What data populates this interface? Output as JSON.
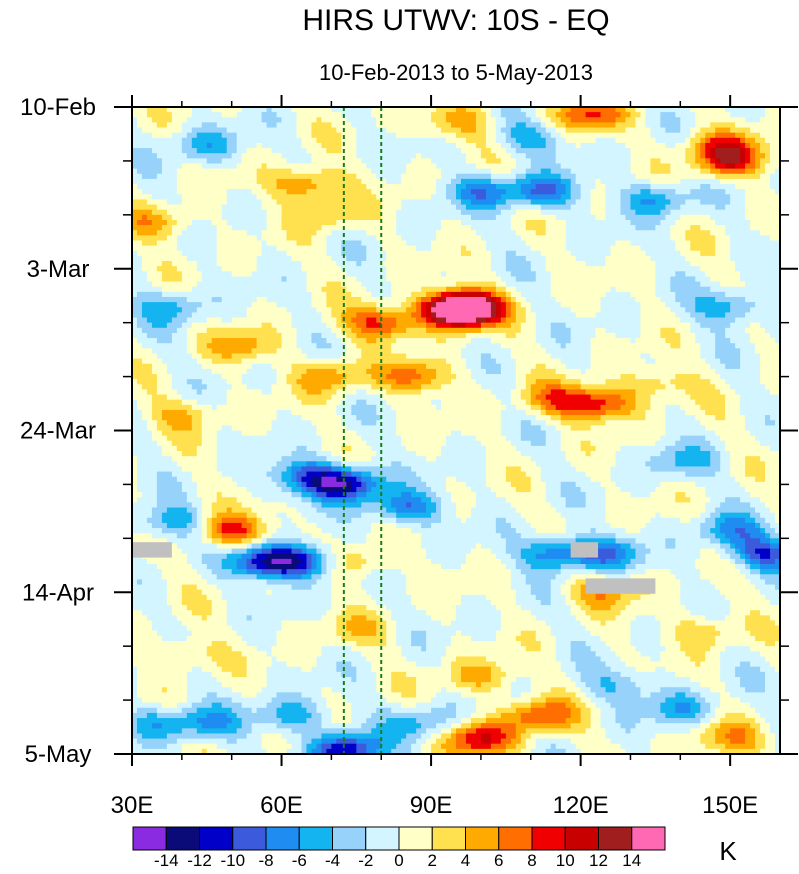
{
  "chart_data": {
    "type": "heatmap",
    "title": "HIRS UTWV: 10S - EQ",
    "subtitle": "10-Feb-2013 to 5-May-2013",
    "xlabel": "",
    "ylabel": "",
    "xlim": [
      30,
      160
    ],
    "ylim_days": [
      0,
      84
    ],
    "x_ticks": [
      {
        "value": 30,
        "label": "30E"
      },
      {
        "value": 60,
        "label": "60E"
      },
      {
        "value": 90,
        "label": "90E"
      },
      {
        "value": 120,
        "label": "120E"
      },
      {
        "value": 150,
        "label": "150E"
      }
    ],
    "y_ticks": [
      {
        "day": 0,
        "label": "10-Feb"
      },
      {
        "day": 21,
        "label": "3-Mar"
      },
      {
        "day": 42,
        "label": "24-Mar"
      },
      {
        "day": 63,
        "label": "14-Apr"
      },
      {
        "day": 84,
        "label": "5-May"
      }
    ],
    "reference_lines_lon": [
      72.5,
      80
    ],
    "colorbar": {
      "unit": "K",
      "levels": [
        -14,
        -12,
        -10,
        -8,
        -6,
        -4,
        -2,
        0,
        2,
        4,
        6,
        8,
        10,
        12,
        14
      ],
      "labels": [
        "-14",
        "-12",
        "-10",
        "-8",
        "-6",
        "-4",
        "-2",
        "0",
        "2",
        "4",
        "6",
        "8",
        "10",
        "12",
        "14"
      ],
      "colors": [
        "#8a2be2",
        "#0a0a78",
        "#0000c8",
        "#3c5adc",
        "#1e8cf0",
        "#14b4f0",
        "#96d2fa",
        "#d2f5ff",
        "#ffffc8",
        "#ffe150",
        "#ffaa00",
        "#ff6e00",
        "#f00000",
        "#c80000",
        "#a01e1e",
        "#ff69b4"
      ]
    },
    "missing_color": "#c0c0c0",
    "anomaly_features": [
      {
        "lon": 97,
        "day": 26,
        "value": 15
      },
      {
        "lon": 95,
        "day": 26.5,
        "value": 12
      },
      {
        "lon": 80,
        "day": 28,
        "value": 9
      },
      {
        "lon": 87,
        "day": 35,
        "value": 7
      },
      {
        "lon": 70,
        "day": 35,
        "value": 6
      },
      {
        "lon": 52,
        "day": 31,
        "value": 5
      },
      {
        "lon": 40,
        "day": 40,
        "value": 4
      },
      {
        "lon": 124,
        "day": 38.5,
        "value": 9
      },
      {
        "lon": 115,
        "day": 38,
        "value": 6
      },
      {
        "lon": 135,
        "day": 36,
        "value": 4
      },
      {
        "lon": 150,
        "day": 7,
        "value": 9
      },
      {
        "lon": 148,
        "day": 5,
        "value": 6
      },
      {
        "lon": 65,
        "day": 10,
        "value": 7
      },
      {
        "lon": 70,
        "day": 14,
        "value": 4
      },
      {
        "lon": 35,
        "day": 15,
        "value": 5
      },
      {
        "lon": 95,
        "day": 2,
        "value": 5
      },
      {
        "lon": 122,
        "day": 1,
        "value": 8
      },
      {
        "lon": 100,
        "day": 82,
        "value": 10
      },
      {
        "lon": 112,
        "day": 79,
        "value": 8
      },
      {
        "lon": 100,
        "day": 74,
        "value": 5
      },
      {
        "lon": 50,
        "day": 55,
        "value": 9
      },
      {
        "lon": 75,
        "day": 59,
        "value": 5
      },
      {
        "lon": 125,
        "day": 63,
        "value": 5
      },
      {
        "lon": 150,
        "day": 82,
        "value": 5
      },
      {
        "lon": 40,
        "day": 71,
        "value": 4
      },
      {
        "lon": 75,
        "day": 68,
        "value": 3
      },
      {
        "lon": 145,
        "day": 68,
        "value": 4
      },
      {
        "lon": 73,
        "day": 49,
        "value": -12
      },
      {
        "lon": 65,
        "day": 48,
        "value": -8
      },
      {
        "lon": 85,
        "day": 52,
        "value": -8
      },
      {
        "lon": 57,
        "day": 59,
        "value": -12
      },
      {
        "lon": 65,
        "day": 59,
        "value": -9
      },
      {
        "lon": 115,
        "day": 58,
        "value": -8
      },
      {
        "lon": 125,
        "day": 58,
        "value": -7
      },
      {
        "lon": 73,
        "day": 83.5,
        "value": -12
      },
      {
        "lon": 62,
        "day": 79,
        "value": -6
      },
      {
        "lon": 45,
        "day": 80,
        "value": -5
      },
      {
        "lon": 88,
        "day": 80,
        "value": -5
      },
      {
        "lon": 112,
        "day": 11,
        "value": -8
      },
      {
        "lon": 100,
        "day": 11,
        "value": -6
      },
      {
        "lon": 110,
        "day": 4,
        "value": -5
      },
      {
        "lon": 135,
        "day": 12,
        "value": -6
      },
      {
        "lon": 150,
        "day": 26,
        "value": -6
      },
      {
        "lon": 45,
        "day": 5,
        "value": -5
      },
      {
        "lon": 38,
        "day": 26,
        "value": -5
      },
      {
        "lon": 38,
        "day": 54,
        "value": -6
      },
      {
        "lon": 150,
        "day": 55,
        "value": -6
      },
      {
        "lon": 157,
        "day": 58,
        "value": -9
      },
      {
        "lon": 140,
        "day": 46,
        "value": -4
      },
      {
        "lon": 128,
        "day": 75,
        "value": -4
      },
      {
        "lon": 140,
        "day": 78,
        "value": -5
      },
      {
        "lon": 35,
        "day": 80,
        "value": -5
      }
    ],
    "missing_regions": [
      {
        "lon_range": [
          30,
          38
        ],
        "day_range": [
          56.5,
          58.5
        ]
      },
      {
        "lon_range": [
          118,
          123.5
        ],
        "day_range": [
          56.5,
          58.5
        ]
      },
      {
        "lon_range": [
          121,
          135
        ],
        "day_range": [
          61.2,
          63.2
        ]
      }
    ]
  }
}
